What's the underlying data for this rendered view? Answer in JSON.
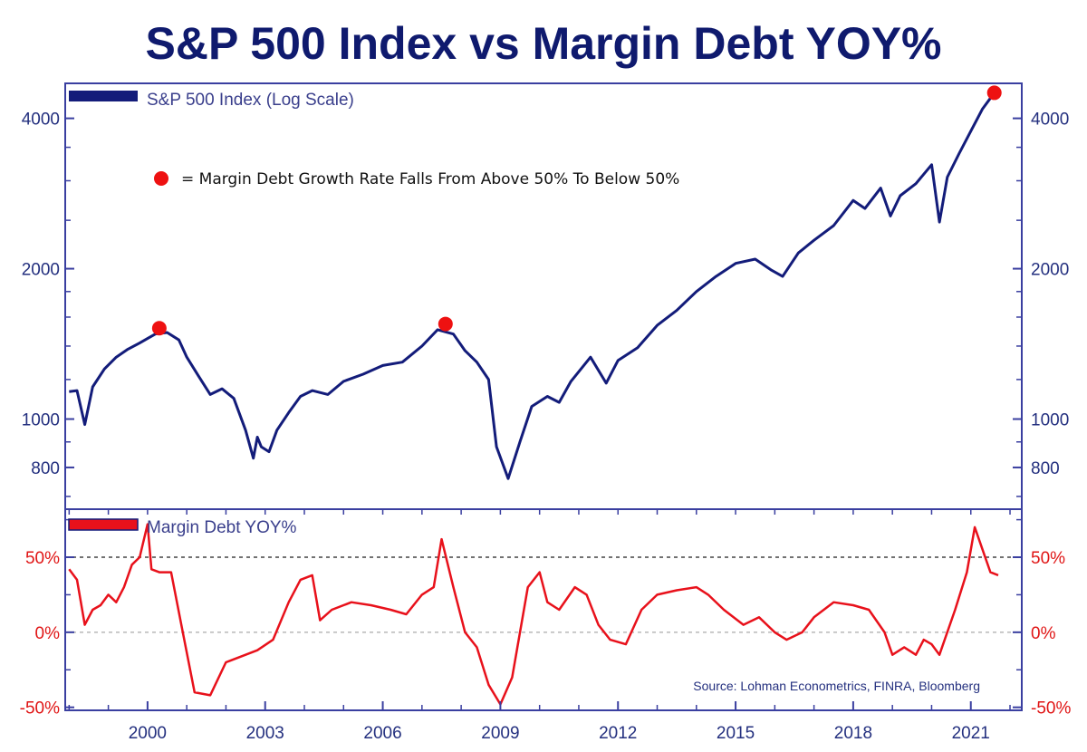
{
  "title": "S&P 500 Index vs Margin Debt YOY%",
  "colors": {
    "sp500": "#131c7a",
    "margin": "#e8111b",
    "axis": "#3a3fa0",
    "title": "#0f1a6e",
    "marker": "#ee1111"
  },
  "annotation": {
    "text": "= Margin Debt Growth Rate Falls From Above 50% To Below 50%",
    "marker_icon": "red-dot-icon"
  },
  "source": "Source: Lohman Econometrics, FINRA, Bloomberg",
  "chart_data": [
    {
      "type": "line",
      "legend_label": "S&P 500 Index (Log Scale)",
      "legend_position": "top-left",
      "y_scale": "log",
      "ylim": [
        660,
        4700
      ],
      "y_ticks": [
        800,
        1000,
        2000,
        4000
      ],
      "y_tick_labels": [
        "800",
        "1000",
        "2000",
        "4000"
      ],
      "xlim": [
        1997.9,
        2022.3
      ],
      "x": [
        1998.0,
        1998.2,
        1998.4,
        1998.6,
        1998.9,
        1999.2,
        1999.5,
        1999.8,
        2000.0,
        2000.2,
        2000.5,
        2000.8,
        2001.0,
        2001.3,
        2001.6,
        2001.9,
        2002.2,
        2002.5,
        2002.7,
        2002.8,
        2002.9,
        2003.1,
        2003.3,
        2003.6,
        2003.9,
        2004.2,
        2004.6,
        2005.0,
        2005.5,
        2006.0,
        2006.5,
        2007.0,
        2007.4,
        2007.8,
        2008.1,
        2008.4,
        2008.7,
        2008.9,
        2009.2,
        2009.5,
        2009.8,
        2010.2,
        2010.5,
        2010.8,
        2011.3,
        2011.7,
        2012.0,
        2012.5,
        2013.0,
        2013.5,
        2014.0,
        2014.5,
        2015.0,
        2015.5,
        2015.9,
        2016.2,
        2016.6,
        2017.0,
        2017.5,
        2018.0,
        2018.3,
        2018.7,
        2018.95,
        2019.2,
        2019.6,
        2020.0,
        2020.2,
        2020.4,
        2020.7,
        2021.0,
        2021.3,
        2021.5,
        2021.7
      ],
      "y": [
        1135,
        1140,
        975,
        1160,
        1260,
        1330,
        1380,
        1420,
        1450,
        1480,
        1490,
        1440,
        1330,
        1220,
        1120,
        1150,
        1100,
        950,
        835,
        920,
        880,
        860,
        950,
        1030,
        1110,
        1140,
        1120,
        1190,
        1230,
        1280,
        1300,
        1400,
        1510,
        1480,
        1370,
        1300,
        1200,
        880,
        760,
        900,
        1060,
        1110,
        1080,
        1190,
        1330,
        1180,
        1310,
        1390,
        1540,
        1650,
        1800,
        1930,
        2050,
        2090,
        1990,
        1930,
        2150,
        2280,
        2440,
        2740,
        2640,
        2900,
        2550,
        2800,
        2960,
        3230,
        2480,
        3050,
        3400,
        3770,
        4180,
        4390,
        4460
      ],
      "markers": [
        {
          "x": 2000.3,
          "y": 1520
        },
        {
          "x": 2007.6,
          "y": 1550
        },
        {
          "x": 2021.6,
          "y": 4500
        }
      ]
    },
    {
      "type": "line",
      "legend_label": "Margin Debt YOY%",
      "legend_position": "top-left",
      "ylim": [
        -52,
        82
      ],
      "y_ticks": [
        -50,
        0,
        50
      ],
      "y_tick_labels": [
        "-50%",
        "0%",
        "50%"
      ],
      "reference_lines": [
        50,
        0
      ],
      "x_ticks": [
        2000,
        2003,
        2006,
        2009,
        2012,
        2015,
        2018,
        2021
      ],
      "x_tick_labels": [
        "2000",
        "2003",
        "2006",
        "2009",
        "2012",
        "2015",
        "2018",
        "2021"
      ],
      "xlim": [
        1997.9,
        2022.3
      ],
      "x": [
        1998.0,
        1998.2,
        1998.4,
        1998.6,
        1998.8,
        1999.0,
        1999.2,
        1999.4,
        1999.6,
        1999.8,
        2000.0,
        2000.1,
        2000.3,
        2000.6,
        2000.9,
        2001.2,
        2001.6,
        2002.0,
        2002.5,
        2002.8,
        2003.2,
        2003.6,
        2003.9,
        2004.2,
        2004.4,
        2004.7,
        2005.2,
        2005.7,
        2006.2,
        2006.6,
        2007.0,
        2007.3,
        2007.5,
        2007.8,
        2008.1,
        2008.4,
        2008.7,
        2009.0,
        2009.3,
        2009.7,
        2010.0,
        2010.2,
        2010.5,
        2010.9,
        2011.2,
        2011.5,
        2011.8,
        2012.2,
        2012.6,
        2013.0,
        2013.5,
        2014.0,
        2014.3,
        2014.7,
        2015.2,
        2015.6,
        2016.0,
        2016.3,
        2016.7,
        2017.0,
        2017.5,
        2018.0,
        2018.4,
        2018.8,
        2019.0,
        2019.3,
        2019.6,
        2019.8,
        2020.0,
        2020.2,
        2020.6,
        2020.9,
        2021.1,
        2021.3,
        2021.5,
        2021.7
      ],
      "y": [
        42,
        35,
        5,
        15,
        18,
        25,
        20,
        30,
        45,
        50,
        72,
        42,
        40,
        40,
        0,
        -40,
        -42,
        -20,
        -15,
        -12,
        -5,
        20,
        35,
        38,
        8,
        15,
        20,
        18,
        15,
        12,
        25,
        30,
        62,
        30,
        0,
        -10,
        -35,
        -48,
        -30,
        30,
        40,
        20,
        15,
        30,
        25,
        5,
        -5,
        -8,
        15,
        25,
        28,
        30,
        25,
        15,
        5,
        10,
        0,
        -5,
        0,
        10,
        20,
        18,
        15,
        0,
        -15,
        -10,
        -15,
        -5,
        -8,
        -15,
        15,
        40,
        70,
        55,
        40,
        38
      ]
    }
  ]
}
